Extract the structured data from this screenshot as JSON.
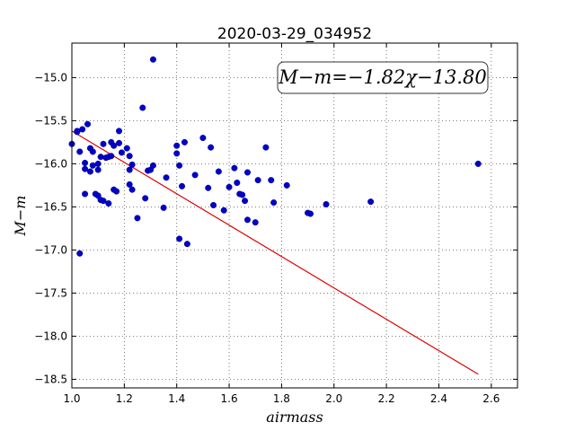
{
  "chart_data": {
    "type": "scatter",
    "title": "2020-03-29_034952",
    "xlabel": "airmass",
    "ylabel": "M−m",
    "xlim": [
      1.0,
      2.7
    ],
    "ylim": [
      -18.6,
      -14.6
    ],
    "y_inverted": true,
    "grid": true,
    "x_ticks": [
      "1.0",
      "1.2",
      "1.4",
      "1.6",
      "1.8",
      "2.0",
      "2.2",
      "2.4",
      "2.6"
    ],
    "y_ticks": [
      "−15.0",
      "−15.5",
      "−16.0",
      "−16.5",
      "−17.0",
      "−17.5",
      "−18.0",
      "−18.5"
    ],
    "annotation": "M−m=−1.82χ−13.80",
    "point_color": "#0000cc",
    "fit_color": "#dd0000",
    "fit": {
      "slope": -1.82,
      "intercept": -13.8,
      "x_range": [
        1.0,
        2.55
      ]
    },
    "points": [
      [
        1.0,
        -15.77
      ],
      [
        1.02,
        -15.63
      ],
      [
        1.02,
        -15.62
      ],
      [
        1.03,
        -15.86
      ],
      [
        1.03,
        -17.04
      ],
      [
        1.04,
        -15.6
      ],
      [
        1.05,
        -16.35
      ],
      [
        1.05,
        -15.99
      ],
      [
        1.05,
        -16.06
      ],
      [
        1.06,
        -15.54
      ],
      [
        1.07,
        -16.09
      ],
      [
        1.07,
        -15.82
      ],
      [
        1.08,
        -15.86
      ],
      [
        1.08,
        -16.02
      ],
      [
        1.09,
        -16.35
      ],
      [
        1.1,
        -16.0
      ],
      [
        1.1,
        -16.37
      ],
      [
        1.1,
        -16.07
      ],
      [
        1.11,
        -15.92
      ],
      [
        1.11,
        -16.42
      ],
      [
        1.12,
        -16.43
      ],
      [
        1.12,
        -15.77
      ],
      [
        1.13,
        -15.93
      ],
      [
        1.14,
        -15.92
      ],
      [
        1.14,
        -16.46
      ],
      [
        1.15,
        -15.75
      ],
      [
        1.15,
        -15.91
      ],
      [
        1.16,
        -16.3
      ],
      [
        1.16,
        -15.79
      ],
      [
        1.17,
        -16.32
      ],
      [
        1.18,
        -15.62
      ],
      [
        1.18,
        -15.76
      ],
      [
        1.19,
        -15.87
      ],
      [
        1.21,
        -15.82
      ],
      [
        1.22,
        -15.91
      ],
      [
        1.22,
        -16.24
      ],
      [
        1.22,
        -16.07
      ],
      [
        1.23,
        -16.01
      ],
      [
        1.23,
        -16.3
      ],
      [
        1.25,
        -16.63
      ],
      [
        1.27,
        -15.35
      ],
      [
        1.28,
        -16.4
      ],
      [
        1.29,
        -16.08
      ],
      [
        1.3,
        -16.07
      ],
      [
        1.31,
        -16.02
      ],
      [
        1.31,
        -14.79
      ],
      [
        1.35,
        -16.51
      ],
      [
        1.36,
        -16.16
      ],
      [
        1.4,
        -15.88
      ],
      [
        1.4,
        -15.79
      ],
      [
        1.41,
        -16.02
      ],
      [
        1.41,
        -16.87
      ],
      [
        1.42,
        -16.26
      ],
      [
        1.43,
        -15.75
      ],
      [
        1.44,
        -16.93
      ],
      [
        1.47,
        -16.13
      ],
      [
        1.5,
        -15.7
      ],
      [
        1.52,
        -16.28
      ],
      [
        1.53,
        -15.81
      ],
      [
        1.54,
        -16.48
      ],
      [
        1.56,
        -16.09
      ],
      [
        1.58,
        -16.54
      ],
      [
        1.6,
        -16.27
      ],
      [
        1.62,
        -16.05
      ],
      [
        1.63,
        -16.22
      ],
      [
        1.64,
        -16.35
      ],
      [
        1.65,
        -16.36
      ],
      [
        1.66,
        -16.43
      ],
      [
        1.67,
        -16.65
      ],
      [
        1.67,
        -16.1
      ],
      [
        1.7,
        -16.68
      ],
      [
        1.71,
        -16.19
      ],
      [
        1.74,
        -15.81
      ],
      [
        1.76,
        -16.19
      ],
      [
        1.77,
        -16.45
      ],
      [
        1.82,
        -16.25
      ],
      [
        1.9,
        -16.57
      ],
      [
        1.91,
        -16.58
      ],
      [
        1.97,
        -16.47
      ],
      [
        2.14,
        -16.44
      ],
      [
        2.55,
        -16.0
      ]
    ]
  }
}
